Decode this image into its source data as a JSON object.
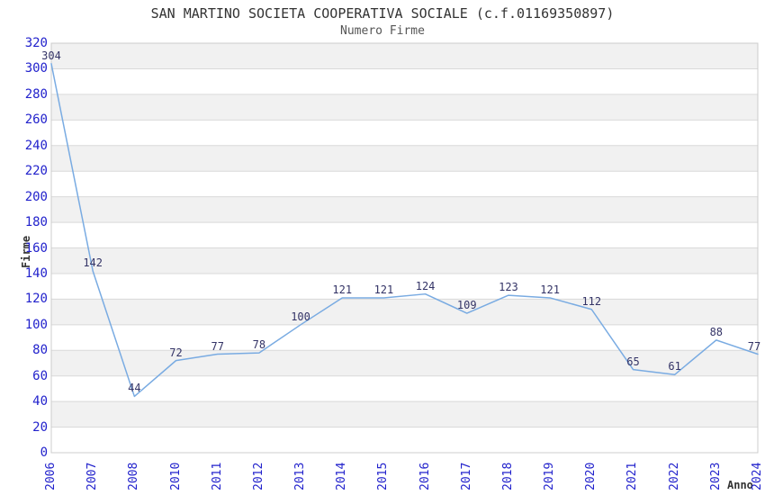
{
  "chart_data": {
    "type": "line",
    "title": "SAN MARTINO SOCIETA COOPERATIVA SOCIALE (c.f.01169350897)",
    "subtitle": "Numero Firme",
    "xlabel": "Anno",
    "ylabel": "Firme",
    "categories": [
      "2006",
      "2007",
      "2008",
      "2010",
      "2011",
      "2012",
      "2013",
      "2014",
      "2015",
      "2016",
      "2017",
      "2018",
      "2019",
      "2020",
      "2021",
      "2022",
      "2023",
      "2024"
    ],
    "values": [
      304,
      142,
      44,
      72,
      77,
      78,
      100,
      121,
      121,
      124,
      109,
      123,
      121,
      112,
      65,
      61,
      88,
      77
    ],
    "ylim": [
      0,
      320
    ],
    "yticks": [
      0,
      20,
      40,
      60,
      80,
      100,
      120,
      140,
      160,
      180,
      200,
      220,
      240,
      260,
      280,
      300,
      320
    ],
    "band_step": 20,
    "grid": "horizontal-bands-alternating",
    "legend": "none",
    "point_markers": false,
    "data_labels_shown": true,
    "colors": {
      "line": "#79abe2",
      "tick_labels": "#2222cc",
      "data_labels": "#333366",
      "band_gray": "#f1f1f1",
      "gridline": "#d9d9d9",
      "plot_border": "#cccccc",
      "title": "#333333",
      "subtitle": "#555555",
      "axis_titles": "#333333",
      "background": "#ffffff"
    }
  }
}
